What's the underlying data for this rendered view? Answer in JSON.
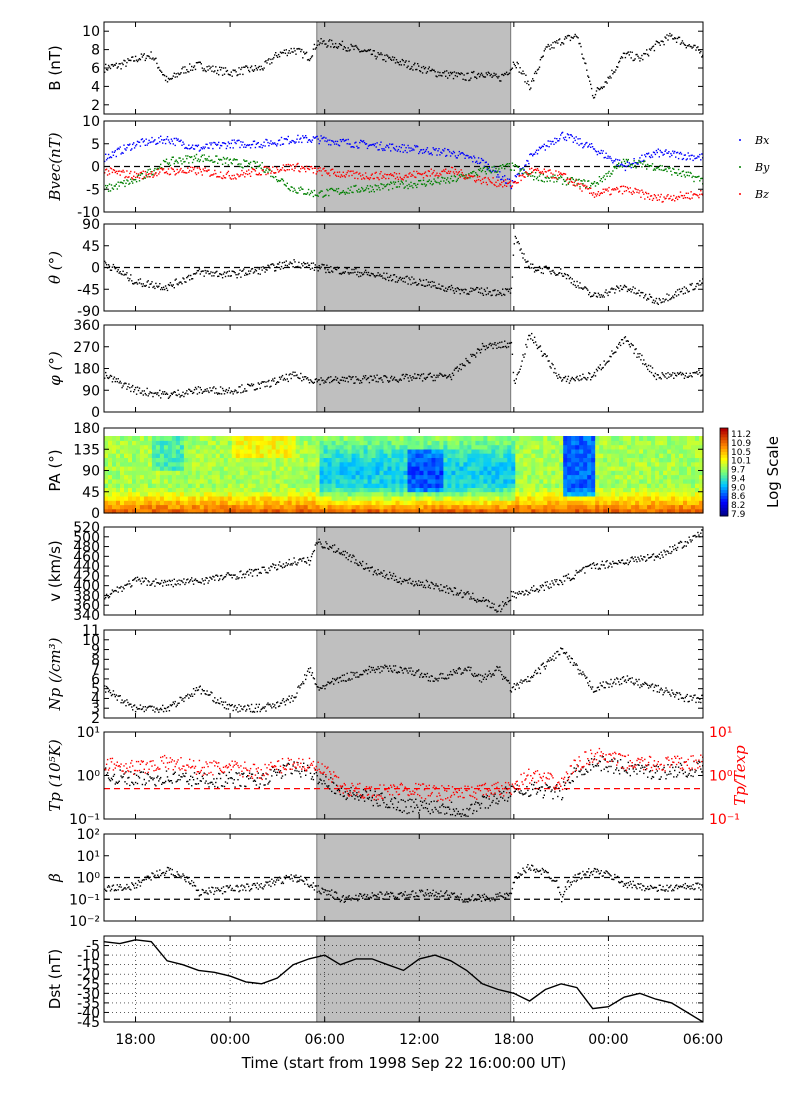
{
  "time_axis": {
    "xlabel": "Time (start from 1998 Sep 22 16:00:00 UT)",
    "range_hours": [
      0,
      38
    ],
    "ticks": [
      {
        "h": 2,
        "label": "18:00"
      },
      {
        "h": 8,
        "label": "00:00"
      },
      {
        "h": 14,
        "label": "06:00"
      },
      {
        "h": 20,
        "label": "12:00"
      },
      {
        "h": 26,
        "label": "18:00"
      },
      {
        "h": 32,
        "label": "00:00"
      },
      {
        "h": 38,
        "label": "06:00"
      }
    ],
    "shaded_interval_hours": [
      13.5,
      25.8
    ]
  },
  "colors": {
    "bx": "#0000ff",
    "by": "#008000",
    "bz": "#ff0000",
    "shade": "#bfbfbf",
    "tratio": "#ff0000"
  },
  "chart_data": [
    {
      "id": "B",
      "type": "scatter",
      "ylabel": "B (nT)",
      "ylim": [
        1,
        11
      ],
      "yticks": [
        "2",
        "4",
        "6",
        "8",
        "10"
      ],
      "series": [
        {
          "values_x": [
            0,
            1,
            2,
            3,
            4,
            5,
            6,
            7,
            8,
            9,
            10,
            11,
            12,
            13,
            13.5,
            15,
            17,
            19,
            21,
            23,
            24,
            25,
            25.8,
            26,
            27,
            28,
            29,
            30,
            31,
            32,
            33,
            34,
            35,
            36,
            37,
            38
          ],
          "values_y": [
            6,
            6.3,
            7,
            7.4,
            4.5,
            5.8,
            6.3,
            5.8,
            5.5,
            5.8,
            6,
            7.5,
            8,
            7.2,
            8.8,
            8.5,
            7.5,
            6.5,
            5.5,
            5,
            5.5,
            4.8,
            6,
            6.8,
            4,
            8,
            9,
            9.5,
            3,
            5,
            7.5,
            7,
            8.5,
            9.5,
            8.5,
            7.5
          ]
        }
      ]
    },
    {
      "id": "Bvec",
      "type": "scatter",
      "ylabel": "Bvec(nT)",
      "ylim": [
        -10,
        10
      ],
      "yticks": [
        "-10",
        "-5",
        "0",
        "5",
        "10"
      ],
      "reference_line": 0,
      "legend": [
        "Bx",
        "By",
        "Bz"
      ],
      "series": [
        {
          "color_key": "bx",
          "values_x": [
            0,
            2,
            4,
            6,
            8,
            10,
            12,
            13.5,
            16,
            19,
            22,
            24,
            25.8,
            27,
            29,
            31,
            33,
            35,
            38
          ],
          "values_y": [
            2,
            5,
            6,
            4,
            5,
            5,
            6,
            6,
            5,
            4,
            3,
            1,
            -4,
            2,
            7,
            4,
            0,
            3,
            2
          ]
        },
        {
          "color_key": "by",
          "values_x": [
            0,
            2,
            4,
            6,
            8,
            10,
            12,
            13.5,
            16,
            19,
            22,
            24,
            25.8,
            27,
            29,
            31,
            33,
            35,
            38
          ],
          "values_y": [
            -5,
            -3,
            1,
            2,
            1,
            0,
            -5,
            -6,
            -5,
            -4,
            -3,
            -1,
            0,
            -2,
            -3,
            -4,
            1,
            0,
            -3
          ]
        },
        {
          "color_key": "bz",
          "values_x": [
            0,
            2,
            4,
            6,
            8,
            10,
            12,
            13.5,
            16,
            19,
            22,
            24,
            25.8,
            27,
            29,
            31,
            33,
            35,
            38
          ],
          "values_y": [
            -1,
            -2,
            -1,
            -1,
            -2,
            -1,
            0,
            -1,
            -2,
            -2,
            -1,
            -3,
            -4,
            -1,
            -2,
            -6,
            -5,
            -7,
            -6
          ]
        }
      ]
    },
    {
      "id": "theta",
      "type": "scatter",
      "ylabel": "θ (°)",
      "ylim": [
        -90,
        90
      ],
      "yticks": [
        "-90",
        "-45",
        "0",
        "45",
        "90"
      ],
      "reference_line": 0,
      "series": [
        {
          "values_x": [
            0,
            2,
            4,
            6,
            8,
            10,
            12,
            13.5,
            16,
            18,
            20,
            22,
            24,
            25.8,
            26,
            27,
            29,
            31,
            33,
            35,
            38
          ],
          "values_y": [
            10,
            -30,
            -40,
            -10,
            -15,
            -5,
            10,
            0,
            -10,
            -20,
            -30,
            -45,
            -50,
            -50,
            60,
            0,
            -10,
            -60,
            -40,
            -70,
            -30
          ]
        }
      ]
    },
    {
      "id": "phi",
      "type": "scatter",
      "ylabel": "φ (°)",
      "ylim": [
        0,
        360
      ],
      "yticks": [
        "0",
        "90",
        "180",
        "270",
        "360"
      ],
      "series": [
        {
          "values_x": [
            0,
            2,
            4,
            6,
            8,
            10,
            12,
            13.5,
            16,
            19,
            22,
            24,
            25.8,
            26,
            27,
            29,
            31,
            33,
            35,
            38
          ],
          "values_y": [
            150,
            90,
            70,
            90,
            90,
            110,
            150,
            130,
            135,
            140,
            150,
            270,
            280,
            120,
            320,
            130,
            150,
            300,
            150,
            160
          ]
        }
      ]
    },
    {
      "id": "PA",
      "type": "heatmap",
      "ylabel": "PA (°)",
      "ylim": [
        0,
        180
      ],
      "yticks": [
        "0",
        "45",
        "90",
        "135",
        "180"
      ],
      "colorbar": {
        "label": "Log Scale",
        "ticks": [
          "11.2",
          "10.9",
          "10.5",
          "10.1",
          "9.7",
          "9.4",
          "9.0",
          "8.6",
          "8.2",
          "7.9"
        ]
      }
    },
    {
      "id": "v",
      "type": "scatter",
      "ylabel": "v (km/s)",
      "ylim": [
        340,
        520
      ],
      "yticks": [
        "340",
        "360",
        "380",
        "400",
        "420",
        "440",
        "460",
        "480",
        "500",
        "520"
      ],
      "series": [
        {
          "values_x": [
            0,
            2,
            4,
            6,
            8,
            10,
            12,
            13,
            13.5,
            15,
            17,
            19,
            21,
            23,
            24,
            25,
            25.8,
            27,
            29,
            31,
            33,
            35,
            37,
            38
          ],
          "values_y": [
            380,
            410,
            405,
            410,
            420,
            430,
            450,
            450,
            490,
            470,
            430,
            410,
            400,
            380,
            370,
            350,
            380,
            390,
            410,
            440,
            450,
            460,
            490,
            510
          ]
        }
      ]
    },
    {
      "id": "Np",
      "type": "scatter",
      "ylabel": "Np (/cm³)",
      "ylim": [
        2,
        11
      ],
      "yticks": [
        "2",
        "3",
        "4",
        "5",
        "6",
        "7",
        "8",
        "9",
        "10",
        "11"
      ],
      "series": [
        {
          "values_x": [
            0,
            2,
            4,
            6,
            8,
            10,
            12,
            13,
            13.5,
            15,
            17,
            19,
            21,
            23,
            24,
            25,
            25.8,
            27,
            29,
            31,
            33,
            35,
            37,
            38
          ],
          "values_y": [
            5,
            3,
            3,
            5,
            3,
            3,
            4,
            7,
            5,
            6,
            7,
            7,
            6,
            7,
            6,
            7,
            5,
            6,
            9,
            5,
            6,
            5,
            4,
            4
          ]
        }
      ]
    },
    {
      "id": "Tp",
      "type": "scatter",
      "ylabel": "Tp (10⁵K)",
      "y2label": "Tp/Texp",
      "scale": "log",
      "ylim": [
        0.1,
        10
      ],
      "yticks": [
        "10⁻¹",
        "10⁰",
        "10¹"
      ],
      "reference_line": 0.5,
      "series": [
        {
          "name": "Tp",
          "values_x": [
            0,
            2,
            4,
            6,
            8,
            10,
            12,
            13.5,
            15,
            17,
            19,
            21,
            23,
            25.8,
            27,
            29,
            31,
            33,
            35,
            38
          ],
          "values_y": [
            1,
            0.8,
            0.9,
            0.8,
            0.8,
            0.8,
            1.5,
            1,
            0.4,
            0.3,
            0.2,
            0.2,
            0.15,
            0.4,
            0.5,
            0.4,
            2,
            1.5,
            1.2,
            1.5
          ]
        },
        {
          "name": "Tp/Texp",
          "color_key": "tratio",
          "values_x": [
            0,
            2,
            4,
            6,
            8,
            10,
            12,
            13.5,
            15,
            17,
            19,
            21,
            23,
            25.8,
            27,
            29,
            31,
            33,
            35,
            38
          ],
          "values_y": [
            2,
            1.5,
            2,
            1.5,
            1.5,
            1.2,
            2,
            1.5,
            0.5,
            0.4,
            0.5,
            0.4,
            0.4,
            0.5,
            1,
            0.6,
            3,
            2,
            1.8,
            2
          ]
        }
      ]
    },
    {
      "id": "beta",
      "type": "scatter",
      "ylabel": "β",
      "scale": "log",
      "ylim": [
        0.01,
        100
      ],
      "yticks": [
        "10⁻²",
        "10⁻¹",
        "10⁰",
        "10¹",
        "10²"
      ],
      "reference_lines": [
        1,
        0.1
      ],
      "series": [
        {
          "values_x": [
            0,
            2,
            4,
            6,
            8,
            10,
            12,
            13.5,
            15,
            17,
            19,
            21,
            23,
            25.8,
            27,
            29,
            31,
            33,
            35,
            38
          ],
          "values_y": [
            0.3,
            0.4,
            2,
            0.2,
            0.3,
            0.4,
            1,
            0.3,
            0.1,
            0.15,
            0.15,
            0.2,
            0.1,
            0.15,
            3,
            0.1,
            2,
            0.5,
            0.3,
            0.4
          ]
        }
      ]
    },
    {
      "id": "Dst",
      "type": "line",
      "ylabel": "Dst (nT)",
      "ylim": [
        -45,
        0
      ],
      "yticks": [
        "-45",
        "-40",
        "-35",
        "-30",
        "-25",
        "-20",
        "-15",
        "-10",
        "-5"
      ],
      "series": [
        {
          "values_x": [
            0,
            1,
            2,
            3,
            4,
            5,
            6,
            7,
            8,
            9,
            10,
            11,
            12,
            13,
            14,
            15,
            16,
            17,
            18,
            19,
            20,
            21,
            22,
            23,
            24,
            25,
            26,
            27,
            28,
            29,
            30,
            31,
            32,
            33,
            34,
            35,
            36,
            37,
            38
          ],
          "values_y": [
            -3,
            -4,
            -2,
            -3,
            -13,
            -15,
            -18,
            -19,
            -21,
            -24,
            -25,
            -22,
            -15,
            -12,
            -10,
            -15,
            -12,
            -12,
            -15,
            -18,
            -12,
            -10,
            -13,
            -18,
            -25,
            -28,
            -30,
            -34,
            -28,
            -25,
            -27,
            -38,
            -37,
            -32,
            -30,
            -33,
            -35,
            -40,
            -45
          ]
        }
      ]
    }
  ]
}
